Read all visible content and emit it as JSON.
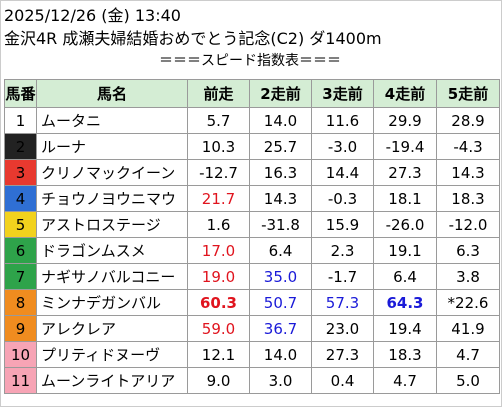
{
  "header": {
    "datetime": "2025/12/26 (金) 13:40",
    "race": "金沢4R 成瀬夫婦結婚おめでとう記念(C2) ダ1400m",
    "subtitle": "＝＝＝スピード指数表＝＝＝"
  },
  "table": {
    "columns": [
      "馬番",
      "馬名",
      "前走",
      "2走前",
      "3走前",
      "4走前",
      "5走前"
    ],
    "rows": [
      {
        "num": "1",
        "name": "ムータニ",
        "v": [
          "5.7",
          "14.0",
          "11.6",
          "29.9",
          "28.9"
        ],
        "style": [
          "",
          "",
          "",
          "",
          ""
        ],
        "color": "#ffffff"
      },
      {
        "num": "2",
        "name": "ルーナ",
        "v": [
          "10.3",
          "25.7",
          "-3.0",
          "-19.4",
          "-4.3"
        ],
        "style": [
          "",
          "",
          "",
          "",
          ""
        ],
        "color": "#222222"
      },
      {
        "num": "3",
        "name": "クリノマックイーン",
        "v": [
          "-12.7",
          "16.3",
          "14.4",
          "27.3",
          "14.3"
        ],
        "style": [
          "",
          "",
          "",
          "",
          ""
        ],
        "color": "#e8392f"
      },
      {
        "num": "4",
        "name": "チョウノヨウニマウ",
        "v": [
          "21.7",
          "14.3",
          "-0.3",
          "18.1",
          "18.3"
        ],
        "style": [
          "red",
          "",
          "",
          "",
          ""
        ],
        "color": "#2f6fd4"
      },
      {
        "num": "5",
        "name": "アストロステージ",
        "v": [
          "1.6",
          "-31.8",
          "15.9",
          "-26.0",
          "-12.0"
        ],
        "style": [
          "",
          "",
          "",
          "",
          ""
        ],
        "color": "#f2d21d"
      },
      {
        "num": "6",
        "name": "ドラゴンムスメ",
        "v": [
          "17.0",
          "6.4",
          "2.3",
          "19.1",
          "6.3"
        ],
        "style": [
          "red",
          "",
          "",
          "",
          ""
        ],
        "color": "#2ea34a"
      },
      {
        "num": "7",
        "name": "ナギサノバルコニー",
        "v": [
          "19.0",
          "35.0",
          "-1.7",
          "6.4",
          "3.8"
        ],
        "style": [
          "red",
          "blue",
          "",
          "",
          ""
        ],
        "color": "#2ea34a"
      },
      {
        "num": "8",
        "name": "ミンナデガンバル",
        "v": [
          "60.3",
          "50.7",
          "57.3",
          "64.3",
          "*22.6"
        ],
        "style": [
          "red bold",
          "blue",
          "blue",
          "blue bold",
          ""
        ],
        "color": "#f08c1f"
      },
      {
        "num": "9",
        "name": "アレクレア",
        "v": [
          "59.0",
          "36.7",
          "23.0",
          "19.4",
          "41.9"
        ],
        "style": [
          "red",
          "blue",
          "",
          "",
          ""
        ],
        "color": "#f08c1f"
      },
      {
        "num": "10",
        "name": "プリティドヌーヴ",
        "v": [
          "12.1",
          "14.0",
          "27.3",
          "18.3",
          "4.7"
        ],
        "style": [
          "",
          "",
          "",
          "",
          ""
        ],
        "color": "#f7a4b5"
      },
      {
        "num": "11",
        "name": "ムーンライトアリア",
        "v": [
          "9.0",
          "3.0",
          "0.4",
          "4.7",
          "5.0"
        ],
        "style": [
          "",
          "",
          "",
          "",
          ""
        ],
        "color": "#f7a4b5"
      }
    ]
  }
}
